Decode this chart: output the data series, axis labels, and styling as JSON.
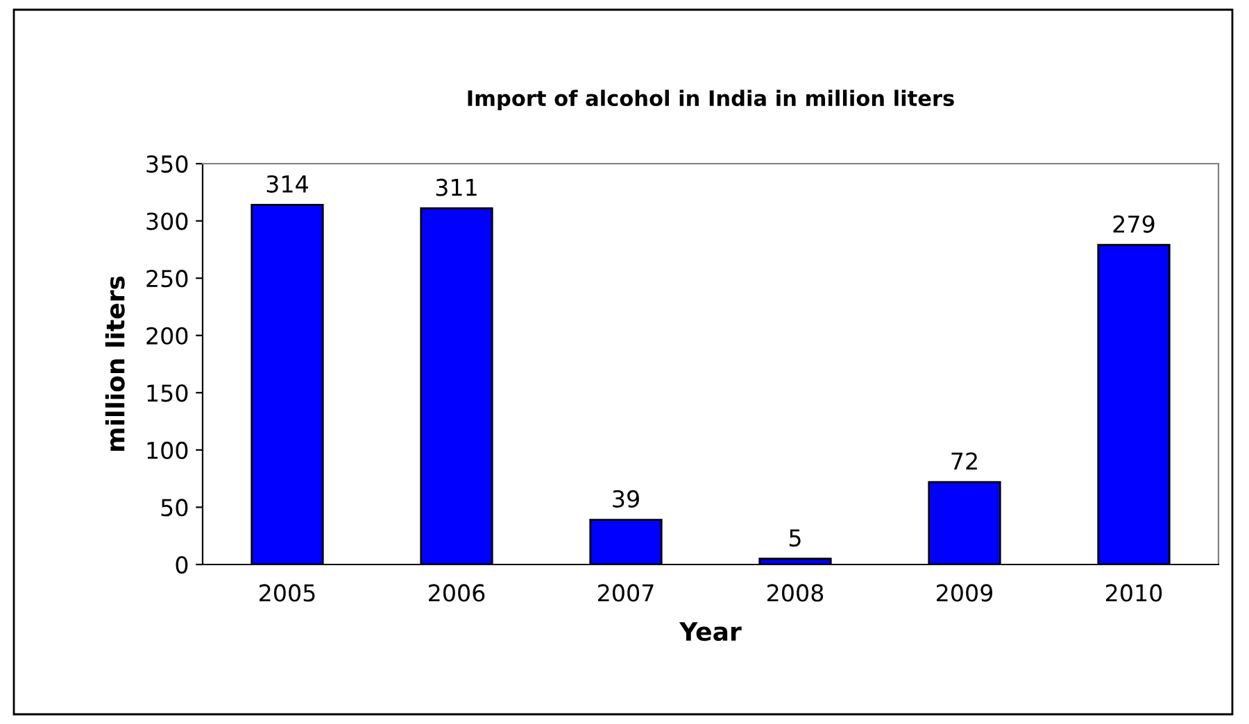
{
  "chart_data": {
    "type": "bar",
    "title": "Import of alcohol in India in million liters",
    "xlabel": "Year",
    "ylabel": "million liters",
    "categories": [
      "2005",
      "2006",
      "2007",
      "2008",
      "2009",
      "2010"
    ],
    "values": [
      314,
      311,
      39,
      5,
      72,
      279
    ],
    "color": "#0000ff",
    "ylim": [
      0,
      350
    ],
    "yticks": [
      0,
      50,
      100,
      150,
      200,
      250,
      300,
      350
    ],
    "grid": false,
    "data_labels": true,
    "legend": false
  }
}
